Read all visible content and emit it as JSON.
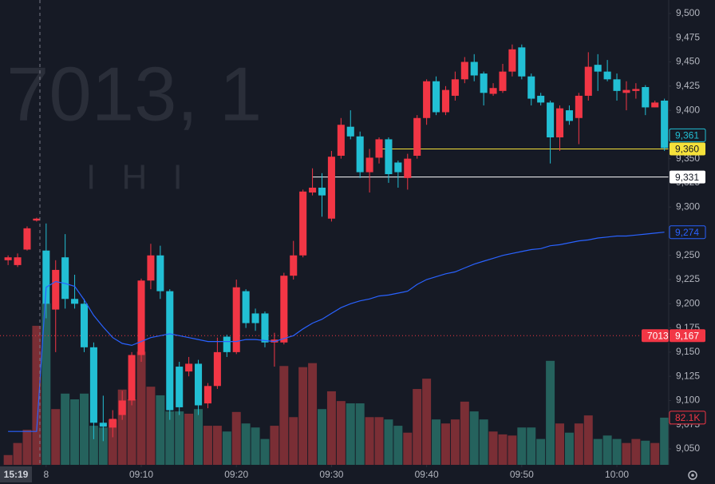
{
  "chart_data": {
    "type": "candlestick",
    "watermark": {
      "symbol": "7013, 1",
      "name": "I H I"
    },
    "x": [
      -4,
      -3,
      -2,
      -1,
      0,
      1,
      2,
      3,
      4,
      5,
      6,
      7,
      8,
      9,
      10,
      11,
      12,
      13,
      14,
      15,
      16,
      17,
      18,
      19,
      20,
      21,
      22,
      23,
      24,
      25,
      26,
      27,
      28,
      29,
      30,
      31,
      32,
      33,
      34,
      35,
      36,
      37,
      38,
      39,
      40,
      41,
      42,
      43,
      44,
      45,
      46,
      47,
      48,
      49,
      50,
      51,
      52,
      53,
      54,
      55,
      56,
      57,
      58,
      59,
      60,
      61,
      62,
      63,
      64,
      65
    ],
    "open": [
      9245,
      9240,
      9256,
      9286,
      9255,
      9194,
      9248,
      9205,
      9200,
      9155,
      9077,
      9072,
      9085,
      9100,
      9147,
      9224,
      9250,
      9213,
      9135,
      9130,
      9138,
      9097,
      9115,
      9166,
      9150,
      9213,
      9190,
      9190,
      9160,
      9160,
      9229,
      9250,
      9315,
      9320,
      9288,
      9353,
      9383,
      9373,
      9336,
      9351,
      9370,
      9346,
      9330,
      9353,
      9392,
      9430,
      9398,
      9415,
      9432,
      9450,
      9438,
      9417,
      9420,
      9440,
      9465,
      9435,
      9415,
      9408,
      9372,
      9400,
      9392,
      9415,
      9447,
      9440,
      9432,
      9418,
      9420,
      9424,
      9403,
      9410
    ],
    "high": [
      9250,
      9252,
      9280,
      9289,
      9283,
      9245,
      9272,
      9230,
      9205,
      9160,
      9105,
      9090,
      9110,
      9150,
      9226,
      9262,
      9260,
      9215,
      9140,
      9145,
      9142,
      9118,
      9165,
      9168,
      9225,
      9215,
      9195,
      9192,
      9170,
      9232,
      9265,
      9318,
      9340,
      9335,
      9358,
      9392,
      9400,
      9378,
      9360,
      9372,
      9372,
      9348,
      9355,
      9395,
      9432,
      9435,
      9425,
      9440,
      9455,
      9458,
      9440,
      9428,
      9448,
      9468,
      9468,
      9438,
      9418,
      9410,
      9405,
      9405,
      9418,
      9460,
      9458,
      9452,
      9438,
      9430,
      9428,
      9426,
      9410,
      9412
    ],
    "low": [
      9240,
      9238,
      9255,
      9285,
      9185,
      9150,
      9195,
      9195,
      9150,
      9060,
      9058,
      9062,
      9080,
      9095,
      9140,
      9215,
      9205,
      9080,
      9085,
      9125,
      9085,
      9092,
      9112,
      9145,
      9148,
      9175,
      9172,
      9155,
      9135,
      9158,
      9225,
      9248,
      9312,
      9290,
      9285,
      9350,
      9370,
      9330,
      9315,
      9345,
      9325,
      9320,
      9318,
      9350,
      9385,
      9395,
      9395,
      9410,
      9428,
      9430,
      9405,
      9415,
      9418,
      9435,
      9432,
      9405,
      9405,
      9345,
      9358,
      9385,
      9365,
      9410,
      9420,
      9430,
      9410,
      9400,
      9412,
      9395,
      9403,
      9358
    ],
    "close": [
      9248,
      9248,
      9278,
      9288,
      9200,
      9235,
      9205,
      9200,
      9155,
      9077,
      9073,
      9081,
      9100,
      9147,
      9224,
      9250,
      9213,
      9090,
      9093,
      9138,
      9095,
      9115,
      9150,
      9150,
      9217,
      9180,
      9180,
      9160,
      9163,
      9229,
      9250,
      9316,
      9320,
      9312,
      9352,
      9385,
      9373,
      9336,
      9351,
      9370,
      9334,
      9336,
      9350,
      9392,
      9430,
      9398,
      9421,
      9432,
      9450,
      9436,
      9418,
      9423,
      9440,
      9463,
      9435,
      9412,
      9408,
      9372,
      9402,
      9389,
      9415,
      9445,
      9440,
      9432,
      9420,
      9421,
      9422,
      9403,
      9408,
      9361
    ],
    "volume": [
      17000,
      38000,
      61000,
      242000,
      281000,
      97000,
      124000,
      114000,
      124000,
      68000,
      65000,
      79000,
      131000,
      114000,
      197000,
      136000,
      121000,
      93000,
      93000,
      89000,
      97000,
      68000,
      68000,
      58000,
      92000,
      72000,
      65000,
      45000,
      68000,
      172000,
      83000,
      170000,
      177000,
      97000,
      128000,
      111000,
      107000,
      107000,
      83000,
      83000,
      79000,
      68000,
      56000,
      132000,
      150000,
      79000,
      72000,
      79000,
      110000,
      93000,
      79000,
      58000,
      53000,
      51000,
      65000,
      65000,
      45000,
      181000,
      72000,
      56000,
      72000,
      86000,
      45000,
      51000,
      45000,
      38000,
      45000,
      42000,
      38000,
      82100
    ],
    "ma": [
      9068,
      9068,
      9068,
      9068,
      9217,
      9223,
      9221,
      9218,
      9204,
      9188,
      9176,
      9165,
      9159,
      9157,
      9161,
      9165,
      9167,
      9169,
      9167,
      9165,
      9163,
      9161,
      9161,
      9161,
      9161,
      9163,
      9163,
      9162,
      9161,
      9164,
      9167,
      9174,
      9180,
      9184,
      9190,
      9196,
      9200,
      9203,
      9205,
      9208,
      9209,
      9211,
      9213,
      9220,
      9225,
      9228,
      9231,
      9233,
      9237,
      9241,
      9244,
      9247,
      9250,
      9252,
      9254,
      9256,
      9257,
      9260,
      9261,
      9263,
      9265,
      9266,
      9268,
      9269,
      9270,
      9270,
      9271,
      9272,
      9273,
      9274
    ],
    "up_color": "#f23645",
    "down_color": "#22bfd4",
    "up_volume_color": "#7a2e35",
    "down_volume_color": "#25625d",
    "ma_color": "#2962ff",
    "last_close_label": "9,361",
    "ma_last_label": "9,274",
    "volume_last_label": "82.1K",
    "prev_close": {
      "value": 9167,
      "label": "9,167",
      "symbol": "7013",
      "color": "#f23645"
    },
    "price_lines": [
      {
        "value": 9360,
        "label": "9,360",
        "color": "#f5e13a",
        "start": 35
      },
      {
        "value": 9331,
        "label": "9,331",
        "color": "#ffffff",
        "start": 28
      }
    ],
    "xlim": [
      -4.85,
      65.45
    ],
    "ylim": [
      9033.5,
      9514
    ],
    "volume_ylim": [
      0,
      809000
    ],
    "yticks": [
      {
        "value": 9050,
        "label": "9,050"
      },
      {
        "value": 9075,
        "label": "9,075"
      },
      {
        "value": 9100,
        "label": "9,100"
      },
      {
        "value": 9125,
        "label": "9,125"
      },
      {
        "value": 9150,
        "label": "9,150"
      },
      {
        "value": 9175,
        "label": "9,175"
      },
      {
        "value": 9200,
        "label": "9,200"
      },
      {
        "value": 9225,
        "label": "9,225"
      },
      {
        "value": 9250,
        "label": "9,250"
      },
      {
        "value": 9275,
        "label": "9,275"
      },
      {
        "value": 9300,
        "label": "9,300"
      },
      {
        "value": 9325,
        "label": "9,325"
      },
      {
        "value": 9350,
        "label": "9,350"
      },
      {
        "value": 9375,
        "label": "9,375"
      },
      {
        "value": 9400,
        "label": "9,400"
      },
      {
        "value": 9425,
        "label": "9,425"
      },
      {
        "value": 9450,
        "label": "9,450"
      },
      {
        "value": 9475,
        "label": "9,475"
      },
      {
        "value": 9500,
        "label": "9,500"
      }
    ],
    "xticks": [
      {
        "value": 0,
        "label": "8"
      },
      {
        "value": 10,
        "label": "09:10"
      },
      {
        "value": 20,
        "label": "09:20"
      },
      {
        "value": 30,
        "label": "09:30"
      },
      {
        "value": 40,
        "label": "09:40"
      },
      {
        "value": 50,
        "label": "09:50"
      },
      {
        "value": 60,
        "label": "10:00"
      }
    ],
    "crosshair_label": "15:19"
  }
}
